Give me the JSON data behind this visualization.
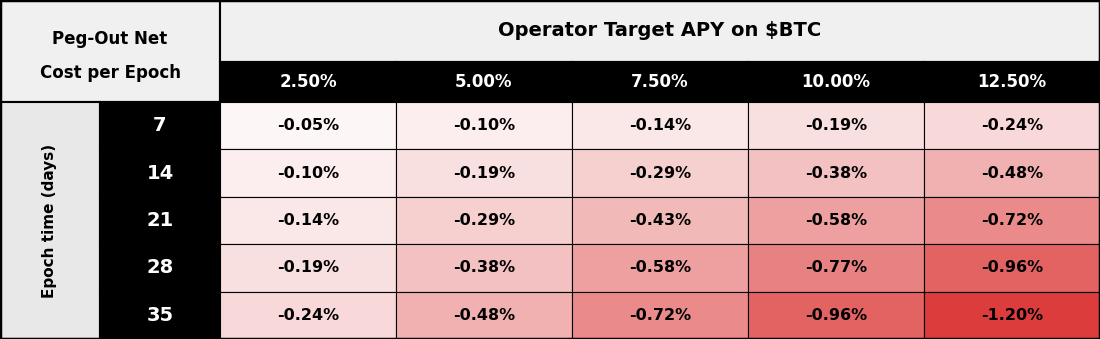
{
  "col_header_top": "Operator Target APY on $BTC",
  "col_header_values": [
    "2.50%",
    "5.00%",
    "7.50%",
    "10.00%",
    "12.50%"
  ],
  "row_header_label": "Epoch time (days)",
  "row_left_label_line1": "Peg-Out Net",
  "row_left_label_line2": "Cost per Epoch",
  "row_values": [
    "7",
    "14",
    "21",
    "28",
    "35"
  ],
  "cell_values": [
    [
      "-0.05%",
      "-0.10%",
      "-0.14%",
      "-0.19%",
      "-0.24%"
    ],
    [
      "-0.10%",
      "-0.19%",
      "-0.29%",
      "-0.38%",
      "-0.48%"
    ],
    [
      "-0.14%",
      "-0.29%",
      "-0.43%",
      "-0.58%",
      "-0.72%"
    ],
    [
      "-0.19%",
      "-0.38%",
      "-0.58%",
      "-0.77%",
      "-0.96%"
    ],
    [
      "-0.24%",
      "-0.48%",
      "-0.72%",
      "-0.96%",
      "-1.20%"
    ]
  ],
  "cell_raw": [
    [
      0.05,
      0.1,
      0.14,
      0.19,
      0.24
    ],
    [
      0.1,
      0.19,
      0.29,
      0.38,
      0.48
    ],
    [
      0.14,
      0.29,
      0.43,
      0.58,
      0.72
    ],
    [
      0.19,
      0.38,
      0.58,
      0.77,
      0.96
    ],
    [
      0.24,
      0.48,
      0.72,
      0.96,
      1.2
    ]
  ],
  "max_val": 1.2,
  "top_hdr_bg": "#f0f0f0",
  "top_hdr_fg": "#000000",
  "sub_hdr_bg": "#000000",
  "sub_hdr_fg": "#ffffff",
  "tl_bg": "#f0f0f0",
  "tl_fg": "#000000",
  "rot_label_bg": "#e8e8e8",
  "rot_label_fg": "#000000",
  "row_num_bg": "#000000",
  "row_num_fg": "#ffffff",
  "cell_text_color": "#000000",
  "heatmap_base": [
    255,
    255,
    255
  ],
  "heatmap_max": [
    220,
    60,
    60
  ],
  "border_color": "#000000",
  "border_lw": 1.5
}
